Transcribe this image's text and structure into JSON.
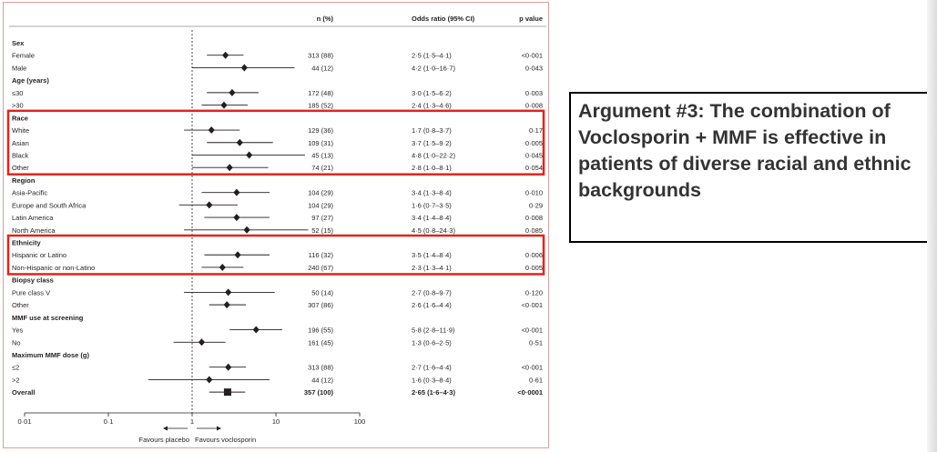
{
  "colors": {
    "highlight": "#e1251b",
    "ink": "#231f20",
    "frame": "#d9a0a0"
  },
  "headers": {
    "n": "n (%)",
    "or": "Odds ratio (95% CI)",
    "p": "p value"
  },
  "callout": {
    "text": "Argument #3: The combination of Voclosporin + MMF is effective in patients of diverse racial and ethnic backgrounds"
  },
  "chart_data": {
    "type": "forest",
    "x_scale": "log",
    "xlim": [
      0.01,
      100
    ],
    "reference_line": 1,
    "x_ticks": [
      {
        "value": 0.01,
        "label": "0·01"
      },
      {
        "value": 0.1,
        "label": "0·1"
      },
      {
        "value": 1,
        "label": "1"
      },
      {
        "value": 10,
        "label": "10"
      },
      {
        "value": 100,
        "label": "100"
      }
    ],
    "favours_left": "Favours placebo",
    "favours_right": "Favours voclosporin",
    "highlighted_groups": [
      "Race",
      "Ethnicity"
    ],
    "groups": [
      {
        "name": "Sex",
        "rows": [
          {
            "label": "Female",
            "n": "313 (88)",
            "or_text": "2·5 (1·5–4·1)",
            "p": "<0·001",
            "or": 2.5,
            "lo": 1.5,
            "hi": 4.1
          },
          {
            "label": "Male",
            "n": "44 (12)",
            "or_text": "4·2 (1·0–16·7)",
            "p": "0·043",
            "or": 4.2,
            "lo": 1.0,
            "hi": 16.7
          }
        ]
      },
      {
        "name": "Age (years)",
        "rows": [
          {
            "label": "≤30",
            "n": "172 (48)",
            "or_text": "3·0 (1·5–6·2)",
            "p": "0·003",
            "or": 3.0,
            "lo": 1.5,
            "hi": 6.2
          },
          {
            "label": ">30",
            "n": "185 (52)",
            "or_text": "2·4 (1·3–4·6)",
            "p": "0·008",
            "or": 2.4,
            "lo": 1.3,
            "hi": 4.6
          }
        ]
      },
      {
        "name": "Race",
        "rows": [
          {
            "label": "White",
            "n": "129 (36)",
            "or_text": "1·7 (0·8–3·7)",
            "p": "0·17",
            "or": 1.7,
            "lo": 0.8,
            "hi": 3.7
          },
          {
            "label": "Asian",
            "n": "109 (31)",
            "or_text": "3·7 (1·5–9·2)",
            "p": "0·005",
            "or": 3.7,
            "lo": 1.5,
            "hi": 9.2
          },
          {
            "label": "Black",
            "n": "45 (13)",
            "or_text": "4·8 (1·0–22·2)",
            "p": "0·045",
            "or": 4.8,
            "lo": 1.0,
            "hi": 22.2
          },
          {
            "label": "Other",
            "n": "74 (21)",
            "or_text": "2·8 (1·0–8·1)",
            "p": "0·054",
            "or": 2.8,
            "lo": 1.0,
            "hi": 8.1
          }
        ]
      },
      {
        "name": "Region",
        "rows": [
          {
            "label": "Asia-Pacific",
            "n": "104 (29)",
            "or_text": "3·4 (1·3–8·4)",
            "p": "0·010",
            "or": 3.4,
            "lo": 1.3,
            "hi": 8.4
          },
          {
            "label": "Europe and South Africa",
            "n": "104 (29)",
            "or_text": "1·6 (0·7–3·5)",
            "p": "0·29",
            "or": 1.6,
            "lo": 0.7,
            "hi": 3.5
          },
          {
            "label": "Latin America",
            "n": "97 (27)",
            "or_text": "3·4 (1·4–8·4)",
            "p": "0·008",
            "or": 3.4,
            "lo": 1.4,
            "hi": 8.4
          },
          {
            "label": "North America",
            "n": "52 (15)",
            "or_text": "4·5 (0·8–24·3)",
            "p": "0·085",
            "or": 4.5,
            "lo": 0.8,
            "hi": 24.3
          }
        ]
      },
      {
        "name": "Ethnicity",
        "rows": [
          {
            "label": "Hispanic or Latino",
            "n": "116 (32)",
            "or_text": "3·5 (1·4–8·4)",
            "p": "0·006",
            "or": 3.5,
            "lo": 1.4,
            "hi": 8.4
          },
          {
            "label": "Non-Hispanic or non-Latino",
            "n": "240 (67)",
            "or_text": "2·3 (1·3–4·1)",
            "p": "0·005",
            "or": 2.3,
            "lo": 1.3,
            "hi": 4.1
          }
        ]
      },
      {
        "name": "Biopsy class",
        "rows": [
          {
            "label": "Pure class V",
            "n": "50 (14)",
            "or_text": "2·7 (0·8–9·7)",
            "p": "0·120",
            "or": 2.7,
            "lo": 0.8,
            "hi": 9.7
          },
          {
            "label": "Other",
            "n": "307 (86)",
            "or_text": "2·6 (1·6–4·4)",
            "p": "<0·001",
            "or": 2.6,
            "lo": 1.6,
            "hi": 4.4
          }
        ]
      },
      {
        "name": "MMF use at screening",
        "rows": [
          {
            "label": "Yes",
            "n": "196 (55)",
            "or_text": "5·8 (2·8–11·9)",
            "p": "<0·001",
            "or": 5.8,
            "lo": 2.8,
            "hi": 11.9
          },
          {
            "label": "No",
            "n": "161 (45)",
            "or_text": "1·3 (0·6–2·5)",
            "p": "0·51",
            "or": 1.3,
            "lo": 0.6,
            "hi": 2.5
          }
        ]
      },
      {
        "name": "Maximum MMF dose (g)",
        "rows": [
          {
            "label": "≤2",
            "n": "313 (88)",
            "or_text": "2·7 (1·6–4·4)",
            "p": "<0·001",
            "or": 2.7,
            "lo": 1.6,
            "hi": 4.4
          },
          {
            "label": ">2",
            "n": "44 (12)",
            "or_text": "1·6 (0·3–8·4)",
            "p": "0·61",
            "or": 1.6,
            "lo": 0.3,
            "hi": 8.4
          }
        ]
      }
    ],
    "overall": {
      "label": "Overall",
      "n": "357 (100)",
      "or_text": "2·65 (1·6–4·3)",
      "p": "<0·0001",
      "or": 2.65,
      "lo": 1.6,
      "hi": 4.3
    }
  }
}
